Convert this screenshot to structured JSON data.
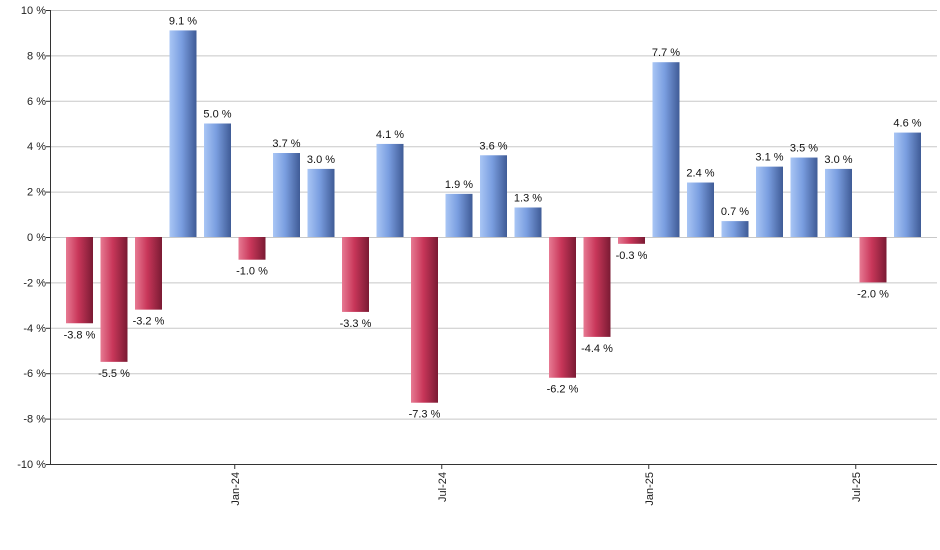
{
  "chart_data": {
    "type": "bar",
    "ylim": [
      -10,
      10
    ],
    "yticks": [
      -10,
      -8,
      -6,
      -4,
      -2,
      0,
      2,
      4,
      6,
      8,
      10
    ],
    "ytick_labels": [
      "-10 %",
      "-8 %",
      "-6 %",
      "-4 %",
      "-2 %",
      "0 %",
      "2 %",
      "4 %",
      "6 %",
      "8 %",
      "10 %"
    ],
    "grid": true,
    "values": [
      -3.8,
      -5.5,
      -3.2,
      9.1,
      5.0,
      -1.0,
      3.7,
      3.0,
      -3.3,
      4.1,
      -7.3,
      1.9,
      3.6,
      1.3,
      -6.2,
      -4.4,
      -0.3,
      7.7,
      2.4,
      0.7,
      3.1,
      3.5,
      3.0,
      -2.0,
      4.6
    ],
    "value_labels": [
      "-3.8 %",
      "-5.5 %",
      "-3.2 %",
      "9.1 %",
      "5.0 %",
      "-1.0 %",
      "3.7 %",
      "3.0 %",
      "-3.3 %",
      "4.1 %",
      "-7.3 %",
      "1.9 %",
      "3.6 %",
      "1.3 %",
      "-6.2 %",
      "-4.4 %",
      "-0.3 %",
      "7.7 %",
      "2.4 %",
      "0.7 %",
      "3.1 %",
      "3.5 %",
      "3.0 %",
      "-2.0 %",
      "4.6 %"
    ],
    "x_tick_labels": [
      {
        "label": "Jan-24",
        "after_bar": 5
      },
      {
        "label": "Jul-24",
        "after_bar": 11
      },
      {
        "label": "Jan-25",
        "after_bar": 17
      },
      {
        "label": "Jul-25",
        "after_bar": 23
      }
    ],
    "colors": {
      "positive_light": "#a9c6f5",
      "positive_mid": "#7a9ee0",
      "positive_dark": "#3f5b96",
      "negative_light": "#e77a93",
      "negative_mid": "#c9375a",
      "negative_dark": "#7a1a33",
      "grid": "#c8c8c8",
      "axis": "#333333"
    }
  }
}
